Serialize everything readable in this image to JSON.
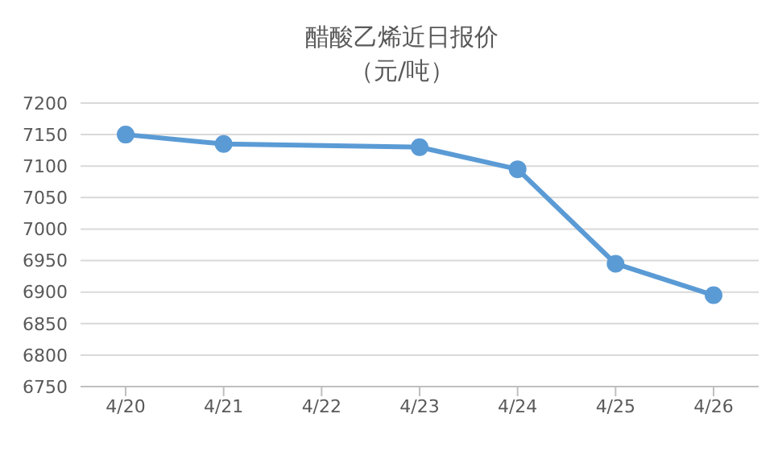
{
  "chart_data": {
    "type": "line",
    "title": "醋酸乙烯近日报价",
    "subtitle": "（元/吨）",
    "categories": [
      "4/20",
      "4/21",
      "4/22",
      "4/23",
      "4/24",
      "4/25",
      "4/26"
    ],
    "series": [
      {
        "color": "#5b9bd5",
        "values": [
          7150,
          7135,
          null,
          7130,
          7095,
          6945,
          6895
        ]
      }
    ],
    "ylim": [
      6750,
      7200
    ],
    "yticks": [
      6750,
      6800,
      6850,
      6900,
      6950,
      7000,
      7050,
      7100,
      7150,
      7200
    ],
    "grid": "y",
    "marker": "circle",
    "line_style": "solid",
    "legend": false
  }
}
